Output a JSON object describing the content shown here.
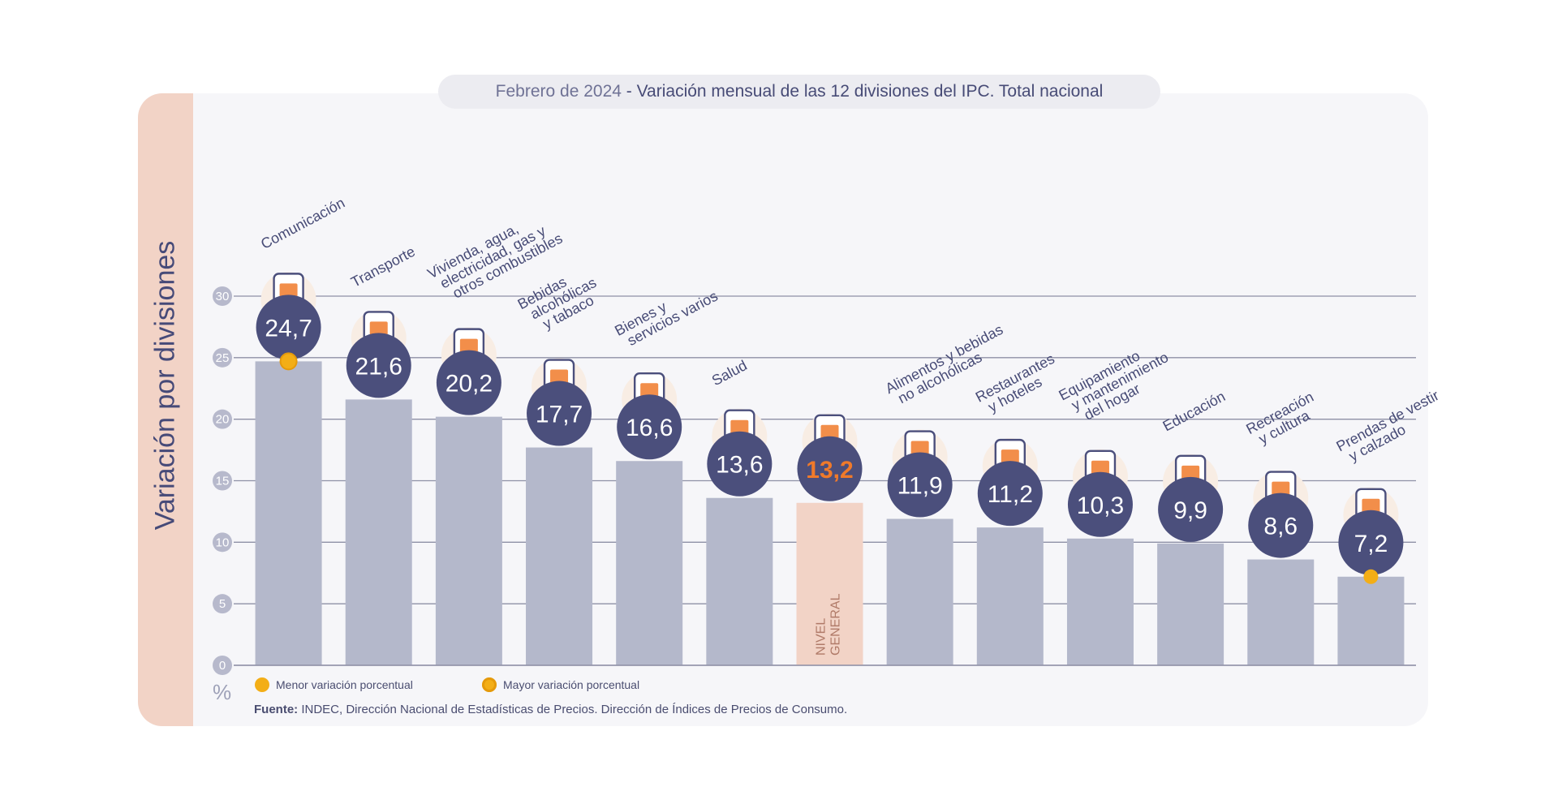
{
  "title": {
    "date": "Febrero de 2024",
    "separator": " - ",
    "text": "Variación mensual de las 12 divisiones del IPC. Total nacional"
  },
  "side_label": "Variación por divisiones",
  "unit_symbol": "%",
  "legend": {
    "min_label": "Menor variación porcentual",
    "max_label": "Mayor variación porcentual"
  },
  "source": {
    "prefix": "Fuente:",
    "text": "INDEC, Dirección Nacional de Estadísticas de Precios. Dirección de Índices de Precios de Consumo."
  },
  "colors": {
    "bar": "#b4b8cb",
    "bar_general": "#f2d3c6",
    "badge": "#4b4f7c",
    "badge_text": "#ffffff",
    "general_value": "#f07a2a",
    "grid": "#8e90a6",
    "accent_orange": "#f07a2a",
    "marker": "#f3ae17"
  },
  "chart_data": {
    "type": "bar",
    "title": "Febrero de 2024 - Variación mensual de las 12 divisiones del IPC. Total nacional",
    "ylabel": "Variación por divisiones",
    "ylim": [
      0,
      30
    ],
    "yticks": [
      0,
      5,
      10,
      15,
      20,
      25,
      30
    ],
    "grid": true,
    "categories": [
      {
        "label": [
          "Comunicación"
        ],
        "value": 24.7,
        "value_label": "24,7",
        "icon": "smartphone-icon",
        "marker": "max"
      },
      {
        "label": [
          "Transporte"
        ],
        "value": 21.6,
        "value_label": "21,6",
        "icon": "car-sube-card-icon"
      },
      {
        "label": [
          "Vivienda, agua,",
          "electricidad, gas y",
          "otros combustibles"
        ],
        "value": 20.2,
        "value_label": "20,2",
        "icon": "lightbulb-faucet-icon"
      },
      {
        "label": [
          "Bebidas",
          "alcohólicas",
          "y tabaco"
        ],
        "value": 17.7,
        "value_label": "17,7",
        "icon": "bottle-glass-icon"
      },
      {
        "label": [
          "Bienes y",
          "servicios varios"
        ],
        "value": 16.6,
        "value_label": "16,6",
        "icon": "comb-scissors-icon"
      },
      {
        "label": [
          "Salud"
        ],
        "value": 13.6,
        "value_label": "13,6",
        "icon": "first-aid-kit-icon"
      },
      {
        "label": [
          "NIVEL",
          "GENERAL"
        ],
        "value": 13.2,
        "value_label": "13,2",
        "icon": "shopping-bag-icon",
        "general": true
      },
      {
        "label": [
          "Alimentos y bebidas",
          "no alcohólicas"
        ],
        "value": 11.9,
        "value_label": "11,9",
        "icon": "roast-chicken-icon"
      },
      {
        "label": [
          "Restaurantes",
          "y hoteles"
        ],
        "value": 11.2,
        "value_label": "11,2",
        "icon": "plate-cutlery-icon"
      },
      {
        "label": [
          "Equipamiento",
          "y mantenimiento",
          "del hogar"
        ],
        "value": 10.3,
        "value_label": "10,3",
        "icon": "washing-machine-icon"
      },
      {
        "label": [
          "Educación"
        ],
        "value": 9.9,
        "value_label": "9,9",
        "icon": "notebook-pencil-icon"
      },
      {
        "label": [
          "Recreación",
          "y cultura"
        ],
        "value": 8.6,
        "value_label": "8,6",
        "icon": "beach-umbrella-icon"
      },
      {
        "label": [
          "Prendas de vestir",
          "y calzado"
        ],
        "value": 7.2,
        "value_label": "7,2",
        "icon": "tshirt-shoe-icon",
        "marker": "min"
      }
    ]
  }
}
